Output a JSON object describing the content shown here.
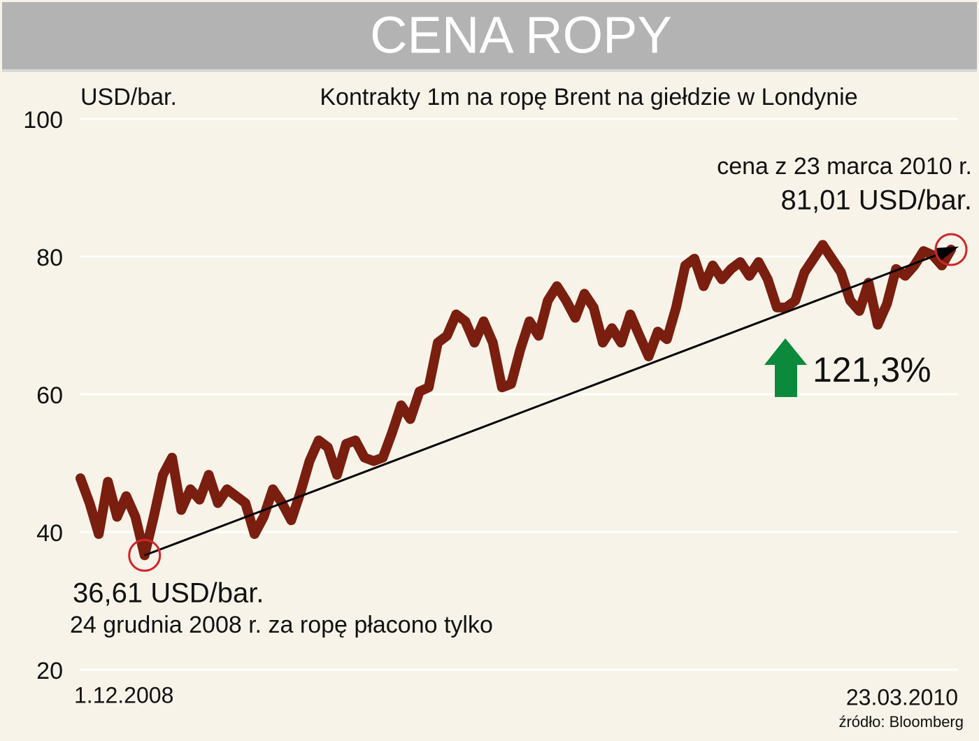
{
  "chart_data": {
    "type": "line",
    "title": "CENA ROPY",
    "subtitle": "Kontrakty 1m  na ropę Brent na giełdzie w Londynie",
    "y_label": "USD/bar.",
    "annotations": {
      "end_date": "cena z 23 marca 2010 r.",
      "end_value": "81,01 USD/bar.",
      "change": "121,3%",
      "min_value": "36,61 USD/bar.",
      "min_date": "24 grudnia 2008 r. za ropę płacono tylko"
    },
    "source": "źródło: Bloomberg",
    "categories": [
      "1.12.2008",
      null,
      null,
      null,
      null,
      null,
      null,
      null,
      null,
      null,
      null,
      null,
      null,
      null,
      null,
      null,
      null,
      null,
      null,
      null,
      null,
      null,
      null,
      null,
      null,
      null,
      null,
      null,
      null,
      null,
      null,
      null,
      null,
      null,
      null,
      null,
      null,
      null,
      null,
      null,
      null,
      null,
      null,
      null,
      null,
      null,
      null,
      null,
      null,
      null,
      null,
      null,
      null,
      null,
      null,
      null,
      null,
      null,
      null,
      null,
      null,
      null,
      null,
      null,
      null,
      null,
      null,
      null,
      null,
      null,
      null,
      null,
      null,
      null,
      null,
      null,
      null,
      null,
      null,
      null,
      null,
      null,
      null,
      null,
      null,
      null,
      null,
      null,
      null,
      null,
      null,
      null,
      null,
      null,
      null,
      "23.03.2010"
    ],
    "series": [
      {
        "name": "Brent",
        "color": "#7a1e0f",
        "values": [
          47.8,
          44.2,
          39.7,
          47.3,
          42.2,
          45.2,
          42.2,
          36.61,
          42.2,
          48.3,
          50.8,
          43.2,
          46.2,
          44.7,
          48.3,
          44.2,
          46.2,
          45.2,
          44.2,
          39.7,
          42.2,
          46.2,
          44.2,
          41.7,
          45.7,
          50.3,
          53.3,
          52.3,
          48.3,
          52.8,
          53.3,
          50.8,
          50.3,
          50.8,
          54.4,
          58.4,
          56.4,
          60.4,
          61.0,
          67.5,
          68.5,
          71.6,
          70.6,
          67.5,
          70.6,
          67.5,
          61.0,
          61.5,
          66.5,
          70.6,
          68.5,
          73.6,
          75.7,
          73.6,
          71.1,
          74.6,
          72.6,
          67.5,
          69.6,
          67.5,
          71.6,
          68.5,
          65.5,
          69.1,
          68.0,
          72.6,
          78.7,
          79.7,
          75.7,
          78.7,
          76.7,
          78.2,
          79.2,
          77.2,
          79.2,
          76.7,
          72.6,
          72.6,
          73.6,
          77.7,
          79.7,
          81.7,
          79.7,
          77.7,
          73.6,
          72.1,
          76.2,
          70.1,
          73.1,
          78.2,
          77.2,
          78.7,
          80.8,
          80.2,
          78.7,
          81.01
        ]
      }
    ],
    "ylim": [
      20,
      100
    ],
    "yticks": [
      20,
      40,
      60,
      80,
      100
    ],
    "grid": true
  }
}
